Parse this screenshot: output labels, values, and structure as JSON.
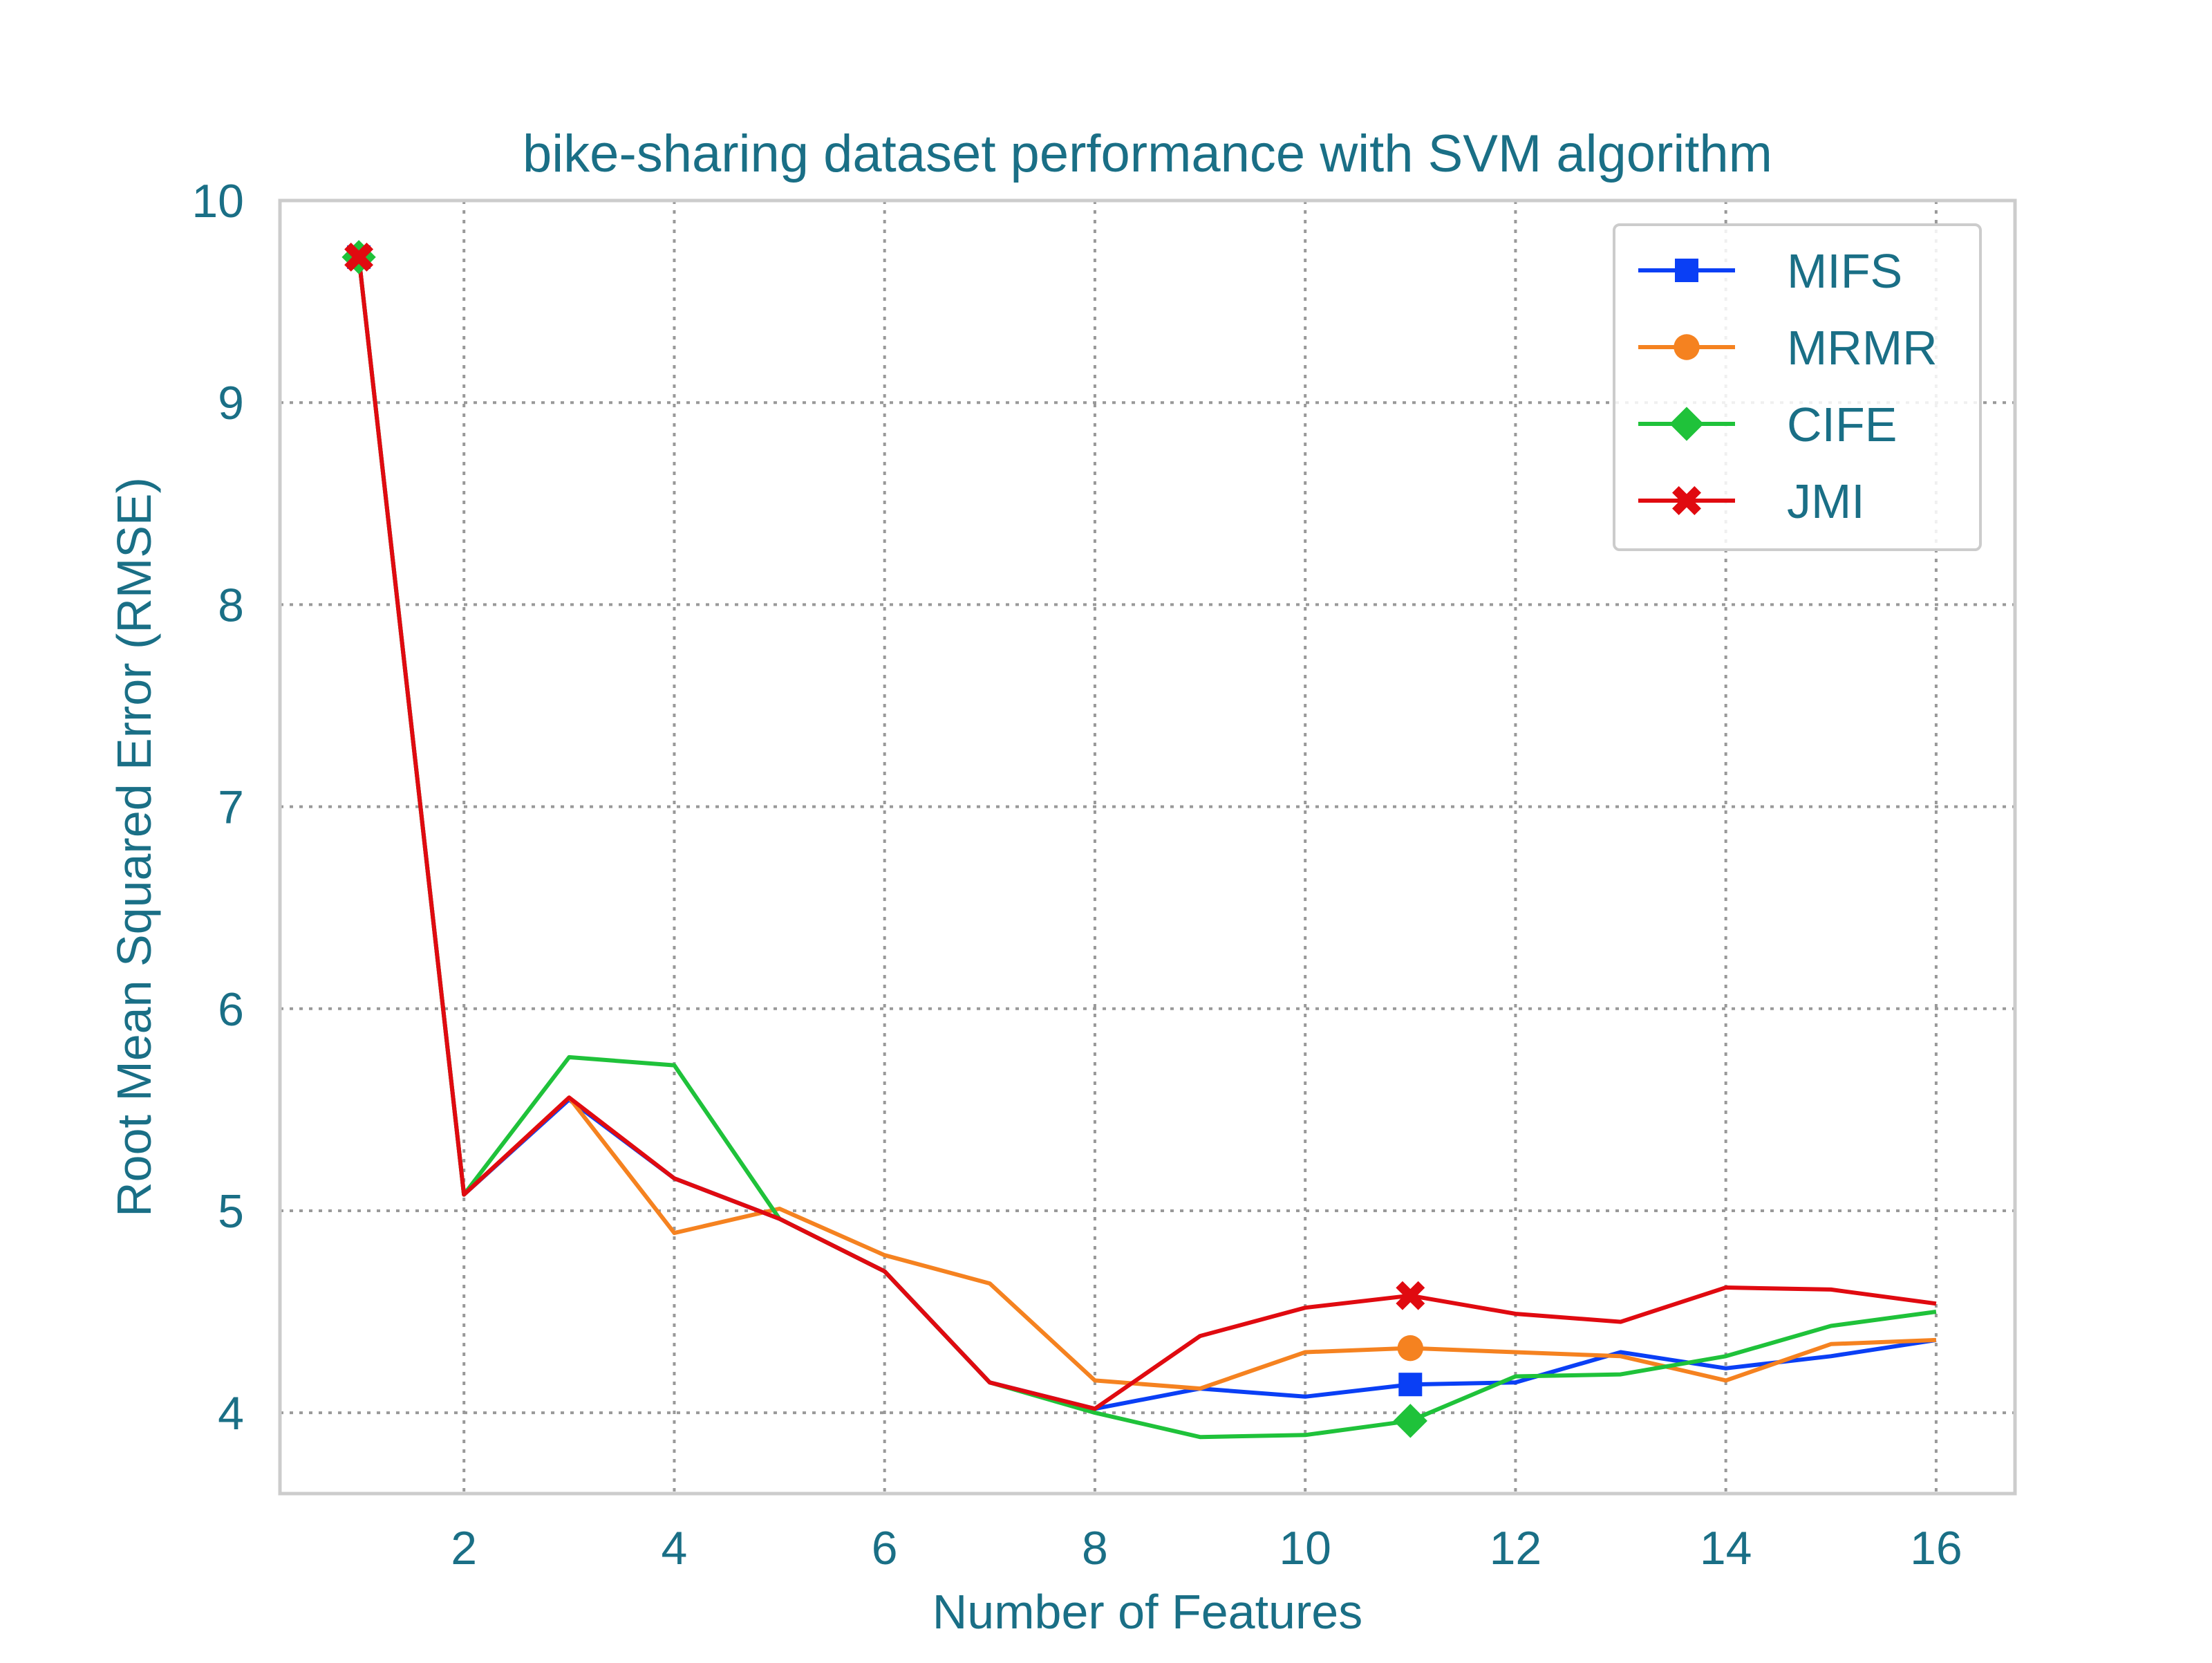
{
  "chart_data": {
    "type": "line",
    "title": "bike-sharing dataset performance with SVM algorithm",
    "xlabel": "Number of Features",
    "ylabel": "Root Mean Squared Error (RMSE)",
    "x": [
      1,
      2,
      3,
      4,
      5,
      6,
      7,
      8,
      9,
      10,
      11,
      12,
      13,
      14,
      15,
      16
    ],
    "xlim": [
      0.25,
      16.75
    ],
    "ylim": [
      3.6,
      10.0
    ],
    "xticks": [
      2,
      4,
      6,
      8,
      10,
      12,
      14,
      16
    ],
    "yticks": [
      4,
      5,
      6,
      7,
      8,
      9,
      10
    ],
    "grid": true,
    "legend_position": "top-right",
    "text_color": "#1a6f86",
    "series": [
      {
        "name": "MIFS",
        "color": "#0a3ff5",
        "marker": "square",
        "marker_at_x": [
          1,
          11
        ],
        "values": [
          9.72,
          5.08,
          5.55,
          5.16,
          4.96,
          4.7,
          4.15,
          4.02,
          4.12,
          4.08,
          4.14,
          4.15,
          4.3,
          4.22,
          4.28,
          4.36
        ]
      },
      {
        "name": "MRMR",
        "color": "#f58220",
        "marker": "circle",
        "marker_at_x": [
          1,
          11
        ],
        "values": [
          9.72,
          5.08,
          5.56,
          4.89,
          5.01,
          4.78,
          4.64,
          4.16,
          4.12,
          4.3,
          4.32,
          4.3,
          4.28,
          4.16,
          4.34,
          4.36
        ]
      },
      {
        "name": "CIFE",
        "color": "#1fc23a",
        "marker": "diamond",
        "marker_at_x": [
          1,
          11
        ],
        "values": [
          9.72,
          5.08,
          5.76,
          5.72,
          4.96,
          4.7,
          4.15,
          4.0,
          3.88,
          3.89,
          3.96,
          4.18,
          4.19,
          4.28,
          4.43,
          4.5
        ]
      },
      {
        "name": "JMI",
        "color": "#e00a10",
        "marker": "x",
        "marker_at_x": [
          1,
          11
        ],
        "values": [
          9.72,
          5.08,
          5.56,
          5.16,
          4.96,
          4.7,
          4.15,
          4.02,
          4.38,
          4.52,
          4.58,
          4.49,
          4.45,
          4.62,
          4.61,
          4.54
        ]
      }
    ]
  }
}
